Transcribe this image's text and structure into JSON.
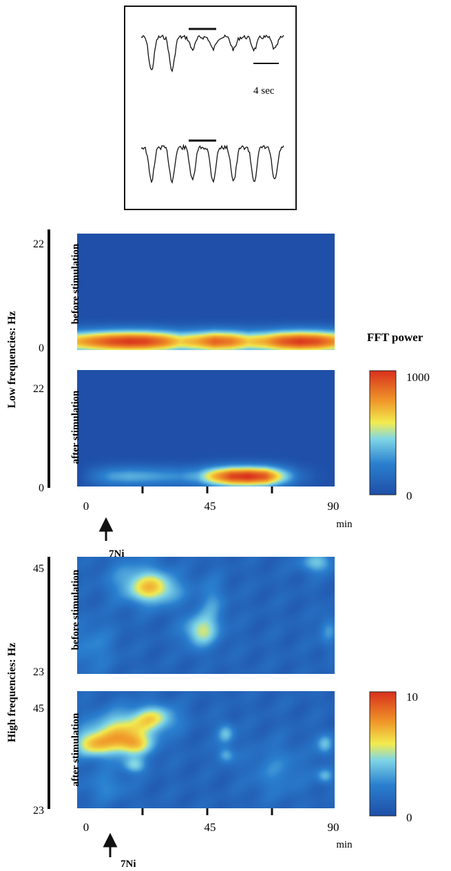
{
  "inset": {
    "scale_label": "4 sec"
  },
  "chart_data": [
    {
      "type": "heatmap",
      "panel": "low-before",
      "section_label": "Low frequencies: Hz",
      "row_label": "before stimulation",
      "y_ticks": [
        "22",
        "0"
      ],
      "xlim": [
        0,
        90
      ],
      "ylim": [
        0,
        22
      ],
      "z_max": 1000,
      "peak_freq_hz": 1.5,
      "peak_band_hz": 2.2,
      "power_profile": [
        {
          "t": 0,
          "p": 700
        },
        {
          "t": 6,
          "p": 820
        },
        {
          "t": 12,
          "p": 930
        },
        {
          "t": 18,
          "p": 980
        },
        {
          "t": 24,
          "p": 950
        },
        {
          "t": 30,
          "p": 830
        },
        {
          "t": 36,
          "p": 640
        },
        {
          "t": 42,
          "p": 720
        },
        {
          "t": 48,
          "p": 880
        },
        {
          "t": 54,
          "p": 820
        },
        {
          "t": 60,
          "p": 650
        },
        {
          "t": 66,
          "p": 720
        },
        {
          "t": 72,
          "p": 900
        },
        {
          "t": 78,
          "p": 980
        },
        {
          "t": 84,
          "p": 930
        },
        {
          "t": 90,
          "p": 780
        }
      ]
    },
    {
      "type": "heatmap",
      "panel": "low-after",
      "row_label": "after stimulation",
      "y_ticks": [
        "22",
        "0"
      ],
      "xlim": [
        0,
        90
      ],
      "ylim": [
        0,
        22
      ],
      "z_max": 1000,
      "peak_freq_hz": 1.8,
      "peak_band_hz": 2.0,
      "power_profile": [
        {
          "t": 0,
          "p": 0
        },
        {
          "t": 6,
          "p": 180
        },
        {
          "t": 12,
          "p": 320
        },
        {
          "t": 18,
          "p": 360
        },
        {
          "t": 24,
          "p": 340
        },
        {
          "t": 30,
          "p": 300
        },
        {
          "t": 36,
          "p": 280
        },
        {
          "t": 42,
          "p": 360
        },
        {
          "t": 48,
          "p": 700
        },
        {
          "t": 54,
          "p": 950
        },
        {
          "t": 60,
          "p": 1000
        },
        {
          "t": 66,
          "p": 900
        },
        {
          "t": 72,
          "p": 500
        },
        {
          "t": 78,
          "p": 150
        },
        {
          "t": 84,
          "p": 40
        },
        {
          "t": 90,
          "p": 0
        }
      ],
      "x_ticks": [
        "0",
        "45",
        "90"
      ],
      "x_unit": "min",
      "marker": "7Ni",
      "colorbar": {
        "title": "FFT power",
        "max_label": "1000",
        "min_label": "0"
      }
    },
    {
      "type": "heatmap",
      "panel": "high-before",
      "section_label": "High frequencies: Hz",
      "row_label": "before stimulation",
      "y_ticks": [
        "45",
        "23"
      ],
      "xlim": [
        0,
        90
      ],
      "ylim": [
        23,
        45
      ],
      "z_max": 10,
      "blobs": [
        {
          "t": 27,
          "f": 39,
          "amp": 4.5,
          "st": 9,
          "sf": 3
        },
        {
          "t": 20,
          "f": 41,
          "amp": 2.0,
          "st": 10,
          "sf": 4
        },
        {
          "t": 43,
          "f": 31,
          "amp": 4.0,
          "st": 6,
          "sf": 3
        },
        {
          "t": 47,
          "f": 36,
          "amp": 1.8,
          "st": 5,
          "sf": 5
        },
        {
          "t": 84,
          "f": 44,
          "amp": 3.0,
          "st": 6,
          "sf": 2
        },
        {
          "t": 88,
          "f": 31,
          "amp": 2.0,
          "st": 3,
          "sf": 3
        },
        {
          "t": 5,
          "f": 28,
          "amp": 1.5,
          "st": 8,
          "sf": 5
        }
      ]
    },
    {
      "type": "heatmap",
      "panel": "high-after",
      "row_label": "after stimulation",
      "y_ticks": [
        "45",
        "23"
      ],
      "xlim": [
        0,
        90
      ],
      "ylim": [
        23,
        45
      ],
      "z_max": 10,
      "blobs": [
        {
          "t": 15,
          "f": 37,
          "amp": 5.0,
          "st": 11,
          "sf": 4
        },
        {
          "t": 5,
          "f": 35,
          "amp": 4.0,
          "st": 7,
          "sf": 2.5
        },
        {
          "t": 20,
          "f": 35,
          "amp": 3.0,
          "st": 6,
          "sf": 2
        },
        {
          "t": 27,
          "f": 40,
          "amp": 4.0,
          "st": 8,
          "sf": 2.5
        },
        {
          "t": 20,
          "f": 31,
          "amp": 3.0,
          "st": 4,
          "sf": 1.5
        },
        {
          "t": 52,
          "f": 37,
          "amp": 3.0,
          "st": 3,
          "sf": 2
        },
        {
          "t": 52,
          "f": 33,
          "amp": 2.6,
          "st": 3,
          "sf": 1.5
        },
        {
          "t": 87,
          "f": 35,
          "amp": 3.0,
          "st": 3,
          "sf": 2
        },
        {
          "t": 87,
          "f": 29,
          "amp": 2.8,
          "st": 3,
          "sf": 1.5
        },
        {
          "t": 10,
          "f": 27,
          "amp": 1.5,
          "st": 8,
          "sf": 3
        },
        {
          "t": 70,
          "f": 30,
          "amp": 1.5,
          "st": 10,
          "sf": 5
        }
      ],
      "x_ticks": [
        "0",
        "45",
        "90"
      ],
      "x_unit": "min",
      "marker": "7Ni",
      "colorbar": {
        "max_label": "10",
        "min_label": "0"
      }
    }
  ]
}
